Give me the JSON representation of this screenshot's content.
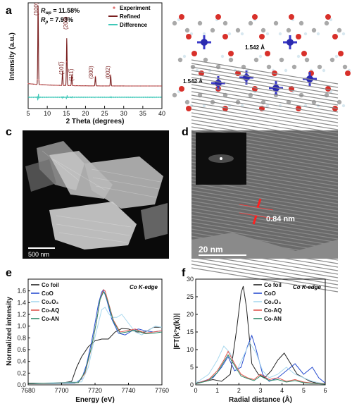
{
  "panels": {
    "a": {
      "letter": "a",
      "rwp": "R",
      "rwp_sub": "wp",
      "rwp_val": " = 11.58%",
      "rp": "R",
      "rp_sub": "p",
      "rp_val": " = 7.93%",
      "legend": [
        "Experiment",
        "Refined",
        "Difference"
      ],
      "peaks": [
        "(100)",
        "(200)",
        "(101̅)",
        "(111̅)",
        "(300)",
        "(002)"
      ]
    },
    "b": {
      "letter": "b",
      "bond1": "1.542 Å",
      "bond2": "1.542 Å"
    },
    "c": {
      "letter": "c",
      "scalebar": "500 nm"
    },
    "d": {
      "letter": "d",
      "spacing": "0.84 nm",
      "scalebar": "20 nm"
    },
    "e": {
      "letter": "e",
      "edge_label": "Co K-edge",
      "legend": [
        "Co foil",
        "CoO",
        "Co₂O₃",
        "Co-AQ",
        "Co-AN"
      ]
    },
    "f": {
      "letter": "f",
      "edge_label": "Co K-edge",
      "legend": [
        "Co foil",
        "CoO",
        "Co₂O₃",
        "Co-AQ",
        "Co-AN"
      ]
    }
  },
  "colors": {
    "experiment": "#e07070",
    "refined": "#7a1f1f",
    "difference": "#40c8b8",
    "co_foil": "#222222",
    "coo": "#2a4fd0",
    "co2o3": "#a8d8ee",
    "co_aq": "#e0574f",
    "co_an": "#2e8b6a"
  },
  "chart_data": [
    {
      "type": "line",
      "panel": "a",
      "xlabel": "2 Theta (degrees)",
      "ylabel": "Intensity (a.u.)",
      "xlim": [
        5,
        40
      ],
      "xticks": [
        "5",
        "10",
        "15",
        "20",
        "25",
        "30",
        "35",
        "40"
      ],
      "peaks_2theta": [
        7.6,
        15.1,
        14.0,
        16.4,
        22.6,
        26.6
      ],
      "peak_heights": [
        1.0,
        0.6,
        0.18,
        0.13,
        0.12,
        0.14
      ],
      "series": [
        {
          "name": "Experiment"
        },
        {
          "name": "Refined"
        },
        {
          "name": "Difference"
        }
      ]
    },
    {
      "type": "line",
      "panel": "e",
      "xlabel": "Energy (eV)",
      "ylabel": "Normalized intensity",
      "xlim": [
        7680,
        7760
      ],
      "ylim": [
        0,
        1.8
      ],
      "xticks": [
        "7680",
        "7700",
        "7720",
        "7740",
        "7760"
      ],
      "yticks": [
        "0.0",
        "0.2",
        "0.4",
        "0.6",
        "0.8",
        "1.0",
        "1.2",
        "1.4",
        "1.6"
      ],
      "series": [
        {
          "name": "Co foil",
          "x": [
            7680,
            7700,
            7706,
            7709,
            7712,
            7716,
            7720,
            7724,
            7728,
            7732,
            7736,
            7740,
            7745,
            7750,
            7755,
            7760
          ],
          "y": [
            0.03,
            0.03,
            0.06,
            0.3,
            0.48,
            0.65,
            0.75,
            0.78,
            0.78,
            0.9,
            0.96,
            0.95,
            0.9,
            0.9,
            0.98,
            0.98
          ]
        },
        {
          "name": "CoO",
          "x": [
            7680,
            7708,
            7712,
            7715,
            7718,
            7720,
            7722,
            7724,
            7725,
            7727,
            7730,
            7734,
            7738,
            7742,
            7746,
            7750,
            7755,
            7760
          ],
          "y": [
            0.02,
            0.03,
            0.1,
            0.35,
            0.75,
            1.05,
            1.38,
            1.58,
            1.62,
            1.45,
            1.12,
            0.88,
            0.85,
            0.92,
            0.95,
            0.92,
            0.9,
            0.92
          ]
        },
        {
          "name": "Co₂O₃",
          "x": [
            7680,
            7712,
            7716,
            7719,
            7722,
            7724,
            7726,
            7728,
            7730,
            7733,
            7736,
            7740,
            7744,
            7748,
            7752,
            7756,
            7760
          ],
          "y": [
            0.02,
            0.05,
            0.3,
            0.7,
            1.05,
            1.28,
            1.32,
            1.22,
            1.15,
            1.15,
            1.2,
            1.05,
            0.9,
            0.85,
            0.93,
            1.0,
            0.98
          ]
        },
        {
          "name": "Co-AQ",
          "x": [
            7680,
            7710,
            7714,
            7718,
            7721,
            7723,
            7725,
            7726,
            7728,
            7731,
            7735,
            7739,
            7744,
            7750,
            7755,
            7760
          ],
          "y": [
            0.02,
            0.04,
            0.2,
            0.65,
            1.1,
            1.45,
            1.62,
            1.6,
            1.4,
            1.1,
            0.9,
            0.92,
            0.95,
            0.88,
            0.9,
            0.92
          ]
        },
        {
          "name": "Co-AN",
          "x": [
            7680,
            7710,
            7714,
            7718,
            7721,
            7723,
            7725,
            7726,
            7728,
            7731,
            7735,
            7739,
            7744,
            7750,
            7755,
            7760
          ],
          "y": [
            0.02,
            0.04,
            0.22,
            0.66,
            1.1,
            1.45,
            1.58,
            1.55,
            1.38,
            1.08,
            0.88,
            0.9,
            0.93,
            0.87,
            0.88,
            0.9
          ]
        }
      ]
    },
    {
      "type": "line",
      "panel": "f",
      "xlabel": "Radial distance (Å)",
      "ylabel": "|FT(k³χ(k))|",
      "xlim": [
        0,
        6
      ],
      "ylim": [
        0,
        30
      ],
      "xticks": [
        "0",
        "1",
        "2",
        "3",
        "4",
        "5",
        "6"
      ],
      "yticks": [
        "0",
        "5",
        "10",
        "15",
        "20",
        "25",
        "30"
      ],
      "series": [
        {
          "name": "Co foil",
          "x": [
            0,
            0.8,
            1.2,
            1.6,
            1.9,
            2.1,
            2.2,
            2.35,
            2.6,
            2.9,
            3.2,
            3.5,
            3.8,
            4.1,
            4.4,
            4.7,
            5.0,
            5.3,
            5.6,
            6.0
          ],
          "y": [
            0.5,
            1.5,
            1.0,
            3.0,
            16,
            26,
            28,
            22,
            6,
            3,
            2,
            4,
            7,
            9,
            6,
            3,
            2,
            1,
            0.5,
            0.3
          ]
        },
        {
          "name": "CoO",
          "x": [
            0,
            0.8,
            1.2,
            1.5,
            1.8,
            2.1,
            2.4,
            2.6,
            2.8,
            3.1,
            3.4,
            3.8,
            4.2,
            4.6,
            5.0,
            5.4,
            5.7,
            6.0
          ],
          "y": [
            0.3,
            2,
            5,
            8,
            4,
            5,
            11,
            14,
            10,
            3,
            1,
            2,
            4,
            6,
            3,
            5,
            2,
            0.5
          ]
        },
        {
          "name": "Co₂O₃",
          "x": [
            0,
            0.6,
            1.0,
            1.3,
            1.6,
            1.9,
            2.2,
            2.5,
            2.8,
            3.1,
            3.4,
            3.8,
            4.2,
            4.6,
            5.0,
            5.4,
            5.8,
            6.0
          ],
          "y": [
            0.5,
            3,
            7,
            11,
            9,
            4,
            8,
            12,
            9,
            4,
            2,
            3,
            5,
            3,
            2,
            1,
            0.5,
            0.3
          ]
        },
        {
          "name": "Co-AQ",
          "x": [
            0,
            0.6,
            1.0,
            1.3,
            1.5,
            1.8,
            2.1,
            2.4,
            2.7,
            3.0,
            3.4,
            3.8,
            4.2,
            4.6,
            5.0,
            5.4,
            6.0
          ],
          "y": [
            0.3,
            1.5,
            4,
            7,
            9.5,
            6,
            3,
            2,
            1.5,
            3,
            1.5,
            2,
            1,
            1.5,
            0.8,
            0.5,
            0.3
          ]
        },
        {
          "name": "Co-AN",
          "x": [
            0,
            0.6,
            1.0,
            1.3,
            1.5,
            1.8,
            2.1,
            2.4,
            2.7,
            3.0,
            3.4,
            3.8,
            4.2,
            4.6,
            5.0,
            5.4,
            6.0
          ],
          "y": [
            0.3,
            1.2,
            3.5,
            6.5,
            8.5,
            5.5,
            2.5,
            1.8,
            1.2,
            2.5,
            1.2,
            1.5,
            0.8,
            1.2,
            0.6,
            0.4,
            0.2
          ]
        }
      ]
    }
  ]
}
